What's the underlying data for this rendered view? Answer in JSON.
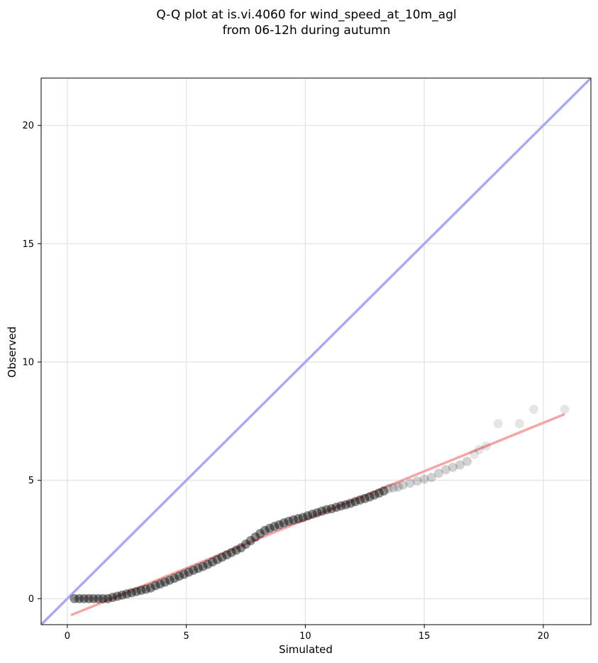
{
  "chart_data": {
    "type": "scatter",
    "title": "Q-Q plot at is.vi.4060 for wind_speed_at_10m_agl",
    "subtitle": "from 06-12h during autumn",
    "xlabel": "Simulated",
    "ylabel": "Observed",
    "xlim": [
      -1.1,
      22
    ],
    "ylim": [
      -1.1,
      22
    ],
    "xticks": [
      0,
      5,
      10,
      15,
      20
    ],
    "yticks": [
      0,
      5,
      10,
      15,
      20
    ],
    "grid": true,
    "colors": {
      "points": "#000000",
      "identity_line": "#aaaaf0",
      "fit_line": "#f4a6a6",
      "grid": "#e6e6e6"
    },
    "series": [
      {
        "kind": "quantile-points",
        "points": [
          [
            0.3,
            0.0
          ],
          [
            0.5,
            0.0
          ],
          [
            0.7,
            0.0
          ],
          [
            0.9,
            0.0
          ],
          [
            1.1,
            0.0
          ],
          [
            1.3,
            0.0
          ],
          [
            1.5,
            0.0
          ],
          [
            1.7,
            0.0
          ],
          [
            1.9,
            0.05
          ],
          [
            2.1,
            0.1
          ],
          [
            2.3,
            0.15
          ],
          [
            2.5,
            0.2
          ],
          [
            2.7,
            0.25
          ],
          [
            2.9,
            0.3
          ],
          [
            3.1,
            0.35
          ],
          [
            3.3,
            0.4
          ],
          [
            3.5,
            0.45
          ],
          [
            3.7,
            0.55
          ],
          [
            3.9,
            0.62
          ],
          [
            4.1,
            0.7
          ],
          [
            4.3,
            0.78
          ],
          [
            4.5,
            0.86
          ],
          [
            4.7,
            0.95
          ],
          [
            4.9,
            1.03
          ],
          [
            5.1,
            1.12
          ],
          [
            5.3,
            1.2
          ],
          [
            5.5,
            1.28
          ],
          [
            5.7,
            1.36
          ],
          [
            5.9,
            1.45
          ],
          [
            6.1,
            1.55
          ],
          [
            6.3,
            1.65
          ],
          [
            6.5,
            1.75
          ],
          [
            6.7,
            1.85
          ],
          [
            6.9,
            1.95
          ],
          [
            7.1,
            2.05
          ],
          [
            7.3,
            2.15
          ],
          [
            7.5,
            2.3
          ],
          [
            7.7,
            2.45
          ],
          [
            7.9,
            2.6
          ],
          [
            8.1,
            2.75
          ],
          [
            8.3,
            2.88
          ],
          [
            8.5,
            2.97
          ],
          [
            8.7,
            3.05
          ],
          [
            8.9,
            3.12
          ],
          [
            9.1,
            3.2
          ],
          [
            9.3,
            3.27
          ],
          [
            9.5,
            3.33
          ],
          [
            9.7,
            3.38
          ],
          [
            9.9,
            3.43
          ],
          [
            10.1,
            3.5
          ],
          [
            10.3,
            3.57
          ],
          [
            10.5,
            3.63
          ],
          [
            10.7,
            3.7
          ],
          [
            10.9,
            3.76
          ],
          [
            11.1,
            3.8
          ],
          [
            11.3,
            3.86
          ],
          [
            11.5,
            3.92
          ],
          [
            11.7,
            3.97
          ],
          [
            11.9,
            4.03
          ],
          [
            12.1,
            4.1
          ],
          [
            12.3,
            4.17
          ],
          [
            12.5,
            4.23
          ],
          [
            12.7,
            4.3
          ],
          [
            12.9,
            4.38
          ],
          [
            13.1,
            4.46
          ],
          [
            13.3,
            4.55
          ],
          [
            13.5,
            4.65
          ],
          [
            13.7,
            4.68
          ],
          [
            13.9,
            4.72
          ],
          [
            14.1,
            4.8
          ],
          [
            14.4,
            4.88
          ],
          [
            14.7,
            4.97
          ],
          [
            15.0,
            5.05
          ],
          [
            15.3,
            5.12
          ],
          [
            15.6,
            5.3
          ],
          [
            15.9,
            5.45
          ],
          [
            16.2,
            5.55
          ],
          [
            16.5,
            5.65
          ],
          [
            16.8,
            5.8
          ],
          [
            17.1,
            6.1
          ],
          [
            17.3,
            6.3
          ],
          [
            17.6,
            6.45
          ],
          [
            18.1,
            7.4
          ],
          [
            19.0,
            7.4
          ],
          [
            19.6,
            8.0
          ],
          [
            20.9,
            8.0
          ]
        ]
      },
      {
        "kind": "identity-line",
        "points": [
          [
            -1.1,
            -1.1
          ],
          [
            22,
            22
          ]
        ]
      },
      {
        "kind": "regression-line",
        "points": [
          [
            0.15,
            -0.7
          ],
          [
            20.9,
            7.8
          ]
        ]
      }
    ]
  }
}
